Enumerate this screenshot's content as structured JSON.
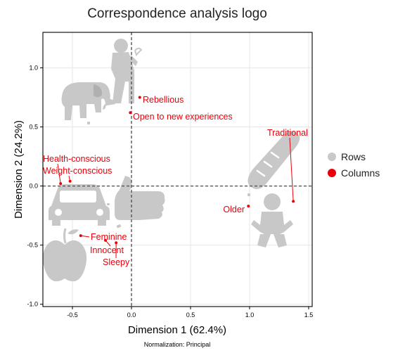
{
  "chart_data": {
    "type": "scatter",
    "title": "Correspondence analysis logo",
    "xlabel": "Dimension 1 (62.4%)",
    "ylabel": "Dimension 2 (24.2%)",
    "caption": "Normalization: Principal",
    "xlim": [
      -0.75,
      1.53
    ],
    "ylim": [
      -1.02,
      1.3
    ],
    "xticks": [
      {
        "v": -0.5,
        "label": "-0.5"
      },
      {
        "v": 0.0,
        "label": "0.0"
      },
      {
        "v": 0.5,
        "label": "0.5"
      },
      {
        "v": 1.0,
        "label": "1.0"
      },
      {
        "v": 1.5,
        "label": "1.5"
      }
    ],
    "yticks": [
      {
        "v": -1.0,
        "label": "-1.0"
      },
      {
        "v": -0.5,
        "label": "-0.5"
      },
      {
        "v": 0.0,
        "label": "0.0"
      },
      {
        "v": 0.5,
        "label": "0.5"
      },
      {
        "v": 1.0,
        "label": "1.0"
      }
    ],
    "grid": true,
    "legend_position": "right",
    "legend": [
      {
        "label": "Rows",
        "color": "#c8c8c8"
      },
      {
        "label": "Columns",
        "color": "#e8000b"
      }
    ],
    "row_points": [
      {
        "icon": "man-smoking-icon",
        "x": 0.0,
        "y": 0.96
      },
      {
        "icon": "elephant-icon",
        "x": -0.36,
        "y": 0.53
      },
      {
        "icon": "bread-icon",
        "x": 1.0,
        "y": 0.09
      },
      {
        "icon": "baby-icon",
        "x": 1.0,
        "y": -0.15
      },
      {
        "icon": "car-icon",
        "x": -0.35,
        "y": -0.11
      },
      {
        "icon": "thumbs-up-icon",
        "x": -0.1,
        "y": -0.2
      },
      {
        "icon": "apple-icon",
        "x": -0.47,
        "y": -0.38
      }
    ],
    "column_points": [
      {
        "label": "Rebellious",
        "x": 0.07,
        "y": 0.75
      },
      {
        "label": "Open to new experiences",
        "x": -0.01,
        "y": 0.62
      },
      {
        "label": "Traditional",
        "x": 1.37,
        "y": -0.13
      },
      {
        "label": "Older",
        "x": 0.99,
        "y": -0.17
      },
      {
        "label": "Health-conscious",
        "x": -0.6,
        "y": 0.02
      },
      {
        "label": "Weight-conscious",
        "x": -0.52,
        "y": 0.04
      },
      {
        "label": "Feminine",
        "x": -0.43,
        "y": -0.42
      },
      {
        "label": "Innocent",
        "x": -0.22,
        "y": -0.46
      },
      {
        "label": "Sleepy",
        "x": -0.13,
        "y": -0.48
      }
    ],
    "colors": {
      "rows": "#c8c8c8",
      "columns": "#e8000b",
      "grid": "#e6e6e6",
      "axis": "#000000",
      "zero_line": "#555555"
    }
  }
}
